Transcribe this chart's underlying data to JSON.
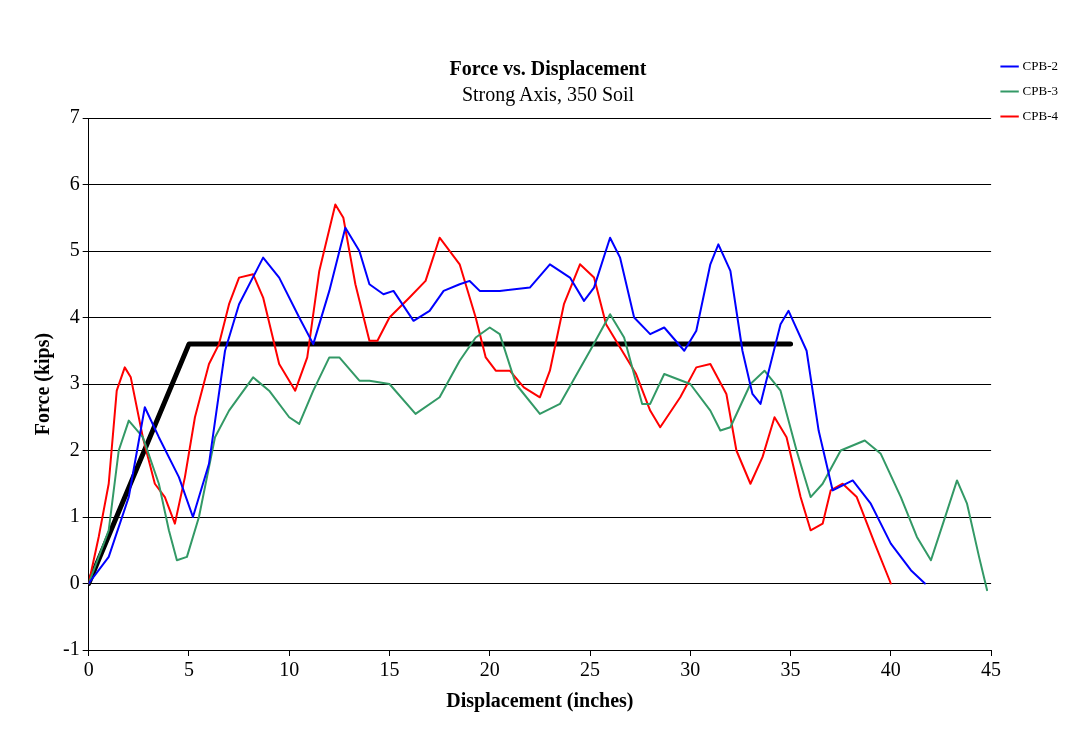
{
  "chart_data": {
    "type": "line",
    "title": "Force vs. Displacement",
    "subtitle": "Strong Axis, 350 Soil",
    "xlabel": "Displacement (inches)",
    "ylabel": "Force (kips)",
    "xlim": [
      0,
      45
    ],
    "xticks": [
      0,
      5,
      10,
      15,
      20,
      25,
      30,
      35,
      40,
      45
    ],
    "ylim": [
      -1,
      7
    ],
    "yticks": [
      -1,
      0,
      1,
      2,
      3,
      4,
      5,
      6,
      7
    ],
    "grid": "y",
    "legend": "top right",
    "marker": "none",
    "line_style": "solid",
    "series": [
      {
        "name": "CPB-2",
        "color": "#0000ff",
        "x": [
          0,
          1,
          2,
          2.8,
          3.5,
          4.5,
          5.2,
          6,
          6.8,
          7.5,
          8.7,
          9.5,
          10.5,
          11.2,
          12,
          12.8,
          13.5,
          14,
          14.7,
          15.2,
          16.2,
          17,
          17.7,
          18.5,
          19,
          19.5,
          20.5,
          22,
          23,
          24,
          24.7,
          25.2,
          26,
          26.5,
          27.2,
          28,
          28.7,
          29.7,
          30.3,
          31,
          31.4,
          32,
          32.6,
          33.1,
          33.5,
          34.5,
          34.9,
          35.8,
          36.4,
          37.1,
          38.1,
          39,
          40,
          41,
          41.7
        ],
        "values": [
          0,
          0.4,
          1.3,
          2.65,
          2.2,
          1.6,
          1.0,
          1.8,
          3.5,
          4.2,
          4.9,
          4.6,
          4.0,
          3.6,
          4.4,
          5.35,
          5.0,
          4.5,
          4.35,
          4.4,
          3.95,
          4.1,
          4.4,
          4.5,
          4.55,
          4.4,
          4.4,
          4.45,
          4.8,
          4.6,
          4.25,
          4.45,
          5.2,
          4.9,
          4.0,
          3.75,
          3.85,
          3.5,
          3.8,
          4.8,
          5.1,
          4.7,
          3.5,
          2.85,
          2.7,
          3.9,
          4.1,
          3.5,
          2.3,
          1.4,
          1.55,
          1.2,
          0.6,
          0.2,
          0
        ]
      },
      {
        "name": "CPB-3",
        "color": "#339966",
        "x": [
          0,
          1,
          1.5,
          2,
          2.7,
          3.5,
          4,
          4.4,
          4.9,
          5.5,
          6.3,
          7,
          8.2,
          9,
          10,
          10.5,
          11.2,
          12,
          12.5,
          13.5,
          14,
          15,
          16.3,
          17.5,
          18.5,
          19.3,
          20,
          20.5,
          21.3,
          22.5,
          23.5,
          25,
          26,
          26.7,
          27.6,
          28,
          28.7,
          30,
          31,
          31.5,
          32,
          33,
          33.7,
          34.5,
          35.3,
          36,
          36.6,
          37.5,
          38.7,
          39.5,
          40.5,
          41.3,
          42,
          42.6,
          43.3,
          43.8,
          44.4,
          44.8
        ],
        "values": [
          0,
          0.8,
          2.0,
          2.45,
          2.2,
          1.5,
          0.8,
          0.35,
          0.4,
          1.0,
          2.2,
          2.6,
          3.1,
          2.9,
          2.5,
          2.4,
          2.9,
          3.4,
          3.4,
          3.05,
          3.05,
          3.0,
          2.55,
          2.8,
          3.35,
          3.7,
          3.85,
          3.75,
          3.0,
          2.55,
          2.7,
          3.5,
          4.05,
          3.7,
          2.7,
          2.7,
          3.15,
          3.0,
          2.6,
          2.3,
          2.35,
          3.0,
          3.2,
          2.9,
          2.0,
          1.3,
          1.5,
          2.0,
          2.15,
          1.95,
          1.3,
          0.7,
          0.35,
          0.9,
          1.55,
          1.2,
          0.4,
          -0.1
        ]
      },
      {
        "name": "CPB-4",
        "color": "#ff0000",
        "x": [
          0,
          0.5,
          1,
          1.4,
          1.8,
          2.1,
          2.7,
          3.3,
          3.8,
          4.3,
          4.8,
          5.3,
          6,
          6.5,
          7,
          7.5,
          8.2,
          8.7,
          9.5,
          10.3,
          10.9,
          11.5,
          12.3,
          12.7,
          13.3,
          14,
          14.4,
          15,
          16,
          16.8,
          17.5,
          18.5,
          19.3,
          19.8,
          20.3,
          21,
          21.7,
          22.5,
          23,
          23.7,
          24.5,
          25.2,
          25.8,
          26.5,
          27.3,
          28,
          28.5,
          29.5,
          30.3,
          31,
          31.8,
          32.3,
          33,
          33.6,
          34.2,
          34.8,
          35.5,
          36,
          36.6,
          37,
          37.6,
          38.3,
          39.2,
          40
        ],
        "values": [
          0,
          0.7,
          1.5,
          2.9,
          3.25,
          3.1,
          2.2,
          1.5,
          1.3,
          0.9,
          1.6,
          2.5,
          3.3,
          3.6,
          4.2,
          4.6,
          4.65,
          4.3,
          3.3,
          2.9,
          3.4,
          4.7,
          5.7,
          5.5,
          4.5,
          3.65,
          3.65,
          4.0,
          4.3,
          4.55,
          5.2,
          4.8,
          4.0,
          3.4,
          3.2,
          3.2,
          2.95,
          2.8,
          3.2,
          4.2,
          4.8,
          4.6,
          3.9,
          3.55,
          3.15,
          2.6,
          2.35,
          2.8,
          3.25,
          3.3,
          2.85,
          2.0,
          1.5,
          1.9,
          2.5,
          2.2,
          1.3,
          0.8,
          0.9,
          1.4,
          1.5,
          1.3,
          0.6,
          0
        ]
      },
      {
        "color": "#000000",
        "x": [
          0,
          5,
          35
        ],
        "values": [
          0,
          3.6,
          3.6
        ]
      }
    ]
  }
}
